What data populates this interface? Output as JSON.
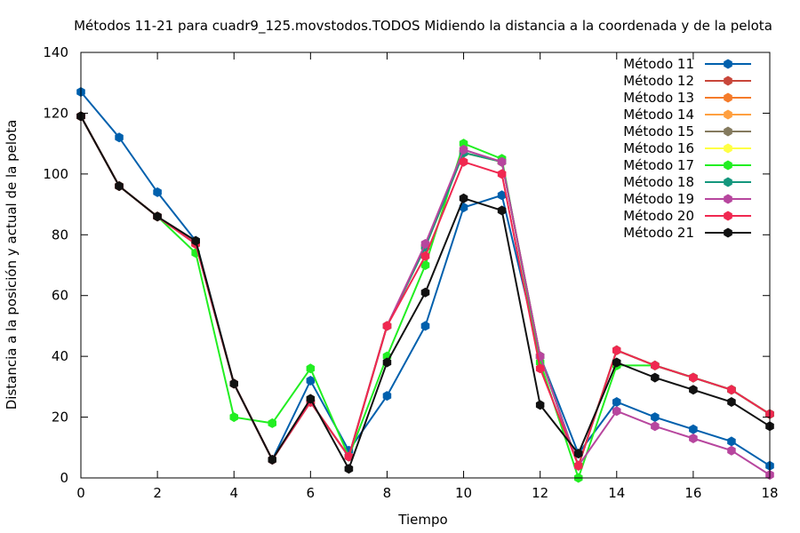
{
  "chart_data": {
    "type": "line",
    "title": "Métodos 11-21 para cuadr9_125.movstodos.TODOS Midiendo la distancia a la coordenada y de la pelota",
    "xlabel": "Tiempo",
    "ylabel": "Distancia a la posición y actual de la pelota",
    "xlim": [
      0,
      18
    ],
    "ylim": [
      0,
      140
    ],
    "xticks": [
      0,
      2,
      4,
      6,
      8,
      10,
      12,
      14,
      16,
      18
    ],
    "yticks": [
      0,
      20,
      40,
      60,
      80,
      100,
      120,
      140
    ],
    "grid": false,
    "legend_position": "top-right",
    "x": [
      0,
      1,
      2,
      3,
      4,
      5,
      6,
      7,
      8,
      9,
      10,
      11,
      12,
      13,
      14,
      15,
      16,
      17,
      18
    ],
    "series": [
      {
        "name": "Método 11",
        "color": "#0060ad",
        "values": [
          127,
          112,
          94,
          78,
          31,
          6,
          32,
          9,
          27,
          50,
          89,
          93,
          40,
          8,
          25,
          20,
          16,
          12,
          4
        ]
      },
      {
        "name": "Método 12",
        "color": "#c8463a",
        "values": [
          119,
          96,
          86,
          77,
          31,
          6,
          25,
          7,
          50,
          76,
          107,
          104,
          40,
          4,
          42,
          37,
          33,
          29,
          21
        ]
      },
      {
        "name": "Método 13",
        "color": "#f57b2a",
        "values": [
          119,
          96,
          86,
          77,
          31,
          6,
          25,
          7,
          50,
          76,
          107,
          104,
          40,
          4,
          42,
          37,
          33,
          29,
          21
        ]
      },
      {
        "name": "Método 14",
        "color": "#ffa040",
        "values": [
          119,
          96,
          86,
          77,
          31,
          6,
          25,
          7,
          50,
          76,
          107,
          104,
          40,
          4,
          42,
          37,
          33,
          29,
          21
        ]
      },
      {
        "name": "Método 15",
        "color": "#847a5e",
        "values": [
          119,
          96,
          86,
          77,
          31,
          6,
          25,
          7,
          50,
          76,
          107,
          104,
          40,
          4,
          42,
          37,
          33,
          29,
          21
        ]
      },
      {
        "name": "Método 16",
        "color": "#ffff44",
        "values": [
          119,
          96,
          86,
          77,
          31,
          6,
          25,
          7,
          50,
          76,
          107,
          104,
          40,
          4,
          42,
          37,
          33,
          29,
          21
        ]
      },
      {
        "name": "Método 17",
        "color": "#22ee22",
        "values": [
          119,
          96,
          86,
          74,
          20,
          18,
          36,
          7,
          40,
          70,
          110,
          105,
          38,
          0,
          37,
          37,
          33,
          29,
          21
        ]
      },
      {
        "name": "Método 18",
        "color": "#14977d",
        "values": [
          119,
          96,
          86,
          77,
          31,
          6,
          25,
          7,
          50,
          76,
          107,
          104,
          40,
          4,
          42,
          37,
          33,
          29,
          21
        ]
      },
      {
        "name": "Método 19",
        "color": "#b7469e",
        "values": [
          119,
          96,
          86,
          77,
          31,
          6,
          25,
          7,
          50,
          77,
          108,
          104,
          40,
          4,
          22,
          17,
          13,
          9,
          1
        ]
      },
      {
        "name": "Método 20",
        "color": "#f02850",
        "values": [
          119,
          96,
          86,
          77,
          31,
          6,
          25,
          7,
          50,
          73,
          104,
          100,
          36,
          4,
          42,
          37,
          33,
          29,
          21
        ]
      },
      {
        "name": "Método 21",
        "color": "#111111",
        "values": [
          119,
          96,
          86,
          78,
          31,
          6,
          26,
          3,
          38,
          61,
          92,
          88,
          24,
          8,
          38,
          33,
          29,
          25,
          17
        ]
      }
    ]
  }
}
